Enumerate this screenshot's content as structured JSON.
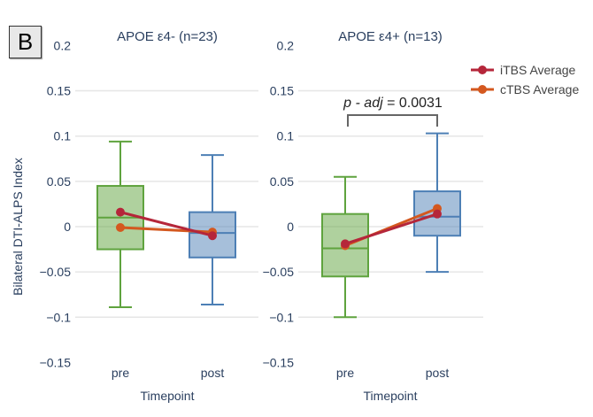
{
  "panel_label": "B",
  "chart_data": [
    {
      "type": "box",
      "title": "APOE ε4- (n=23)",
      "xlabel": "Timepoint",
      "ylabel": "Bilateral DTI-ALPS Index",
      "ylim": [
        -0.15,
        0.2
      ],
      "yticks": [
        "0.2",
        "0.15",
        "0.1",
        "0.05",
        "0",
        "−0.05",
        "−0.1",
        "−0.15"
      ],
      "ytick_values": [
        0.2,
        0.15,
        0.1,
        0.05,
        0,
        -0.05,
        -0.1,
        -0.15
      ],
      "categories": [
        "pre",
        "post"
      ],
      "boxes": [
        {
          "min": -0.089,
          "q1": -0.025,
          "median": 0.01,
          "q3": 0.045,
          "max": 0.094,
          "color": "#5fa33e"
        },
        {
          "min": -0.086,
          "q1": -0.034,
          "median": -0.007,
          "q3": 0.016,
          "max": 0.079,
          "color": "#4d7fb5"
        }
      ],
      "series": [
        {
          "name": "iTBS Average",
          "values": [
            0.016,
            -0.01
          ],
          "color": "#b5263a"
        },
        {
          "name": "cTBS Average",
          "values": [
            -0.001,
            -0.006
          ],
          "color": "#d4581f"
        }
      ]
    },
    {
      "type": "box",
      "title": "APOE ε4+ (n=13)",
      "xlabel": "Timepoint",
      "ylim": [
        -0.15,
        0.2
      ],
      "yticks": [
        "0.2",
        "0.15",
        "0.1",
        "0.05",
        "0",
        "−0.05",
        "−0.1",
        "−0.15"
      ],
      "ytick_values": [
        0.2,
        0.15,
        0.1,
        0.05,
        0,
        -0.05,
        -0.1,
        -0.15
      ],
      "categories": [
        "pre",
        "post"
      ],
      "boxes": [
        {
          "min": -0.1,
          "q1": -0.055,
          "median": -0.024,
          "q3": 0.014,
          "max": 0.055,
          "color": "#5fa33e"
        },
        {
          "min": -0.05,
          "q1": -0.01,
          "median": 0.011,
          "q3": 0.039,
          "max": 0.103,
          "color": "#4d7fb5"
        }
      ],
      "series": [
        {
          "name": "iTBS Average",
          "values": [
            -0.019,
            0.014
          ],
          "color": "#b5263a"
        },
        {
          "name": "cTBS Average",
          "values": [
            -0.021,
            0.02
          ],
          "color": "#d4581f"
        }
      ],
      "annotation": {
        "p_label": "p - adj",
        "equals": " = 0.0031"
      }
    }
  ],
  "legend": {
    "position": "top-right",
    "items": [
      {
        "label": "iTBS Average",
        "color": "#b5263a"
      },
      {
        "label": "cTBS Average",
        "color": "#d4581f"
      }
    ]
  }
}
